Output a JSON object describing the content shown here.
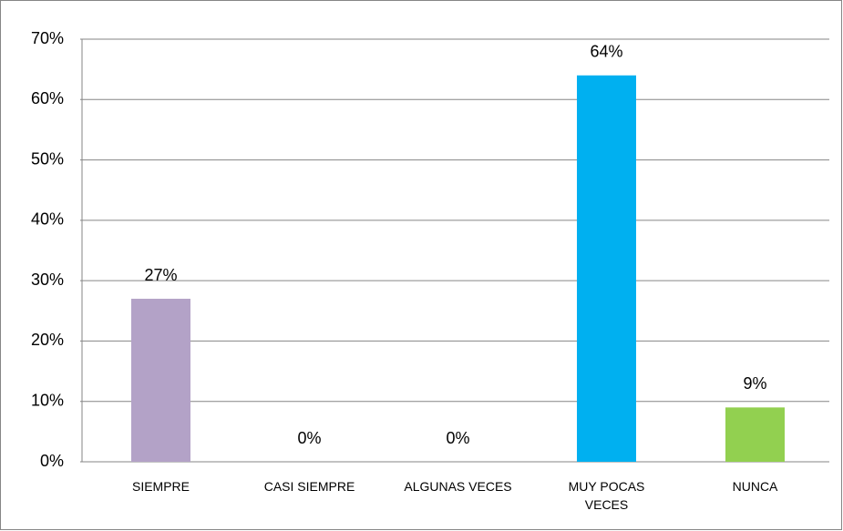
{
  "chart_data": {
    "type": "bar",
    "categories": [
      "SIEMPRE",
      "CASI SIEMPRE",
      "ALGUNAS VECES",
      "MUY POCAS VECES",
      "NUNCA"
    ],
    "values": [
      27,
      0,
      0,
      64,
      9
    ],
    "value_labels": [
      "27%",
      "0%",
      "0%",
      "64%",
      "9%"
    ],
    "colors": [
      "#b3a2c7",
      "#b3a2c7",
      "#b3a2c7",
      "#00b0f0",
      "#92d050"
    ],
    "ylim": [
      0,
      70
    ],
    "yticks": [
      {
        "value": 0,
        "label": "0%"
      },
      {
        "value": 10,
        "label": "10%"
      },
      {
        "value": 20,
        "label": "20%"
      },
      {
        "value": 30,
        "label": "30%"
      },
      {
        "value": 40,
        "label": "40%"
      },
      {
        "value": 50,
        "label": "50%"
      },
      {
        "value": 60,
        "label": "60%"
      },
      {
        "value": 70,
        "label": "70%"
      }
    ],
    "grid": true
  }
}
